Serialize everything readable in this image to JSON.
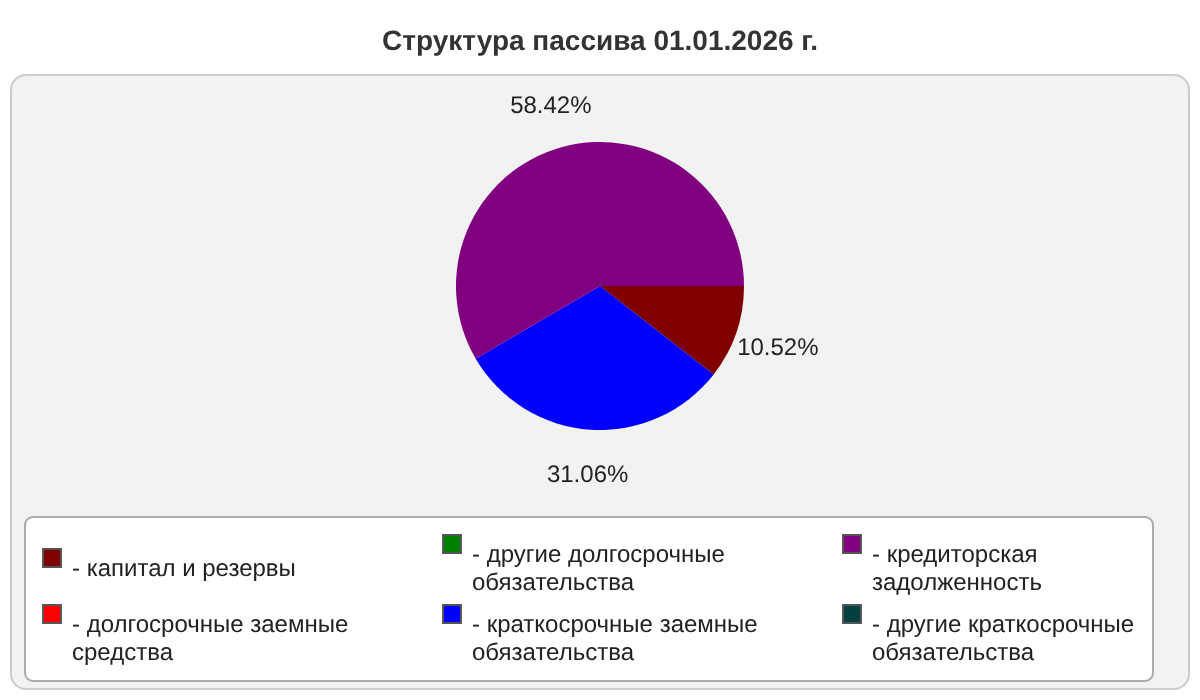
{
  "chart_data": {
    "type": "pie",
    "title": "Структура пассива 01.01.2026 г.",
    "categories": [
      "- капитал и резервы",
      "- долгосрочные заемные средства",
      "- другие долгосрочные обязательства",
      "- краткосрочные заемные обязательства",
      "- кредиторская задолженность",
      "- другие краткосрочные обязательства"
    ],
    "values": [
      10.52,
      0,
      0,
      31.06,
      58.42,
      0
    ],
    "value_labels": [
      "10.52%",
      null,
      null,
      "31.06%",
      "58.42%",
      null
    ],
    "colors": [
      "#800000",
      "#ff0000",
      "#008000",
      "#0000ff",
      "#800080",
      "#004040"
    ],
    "legend": "bottom"
  }
}
